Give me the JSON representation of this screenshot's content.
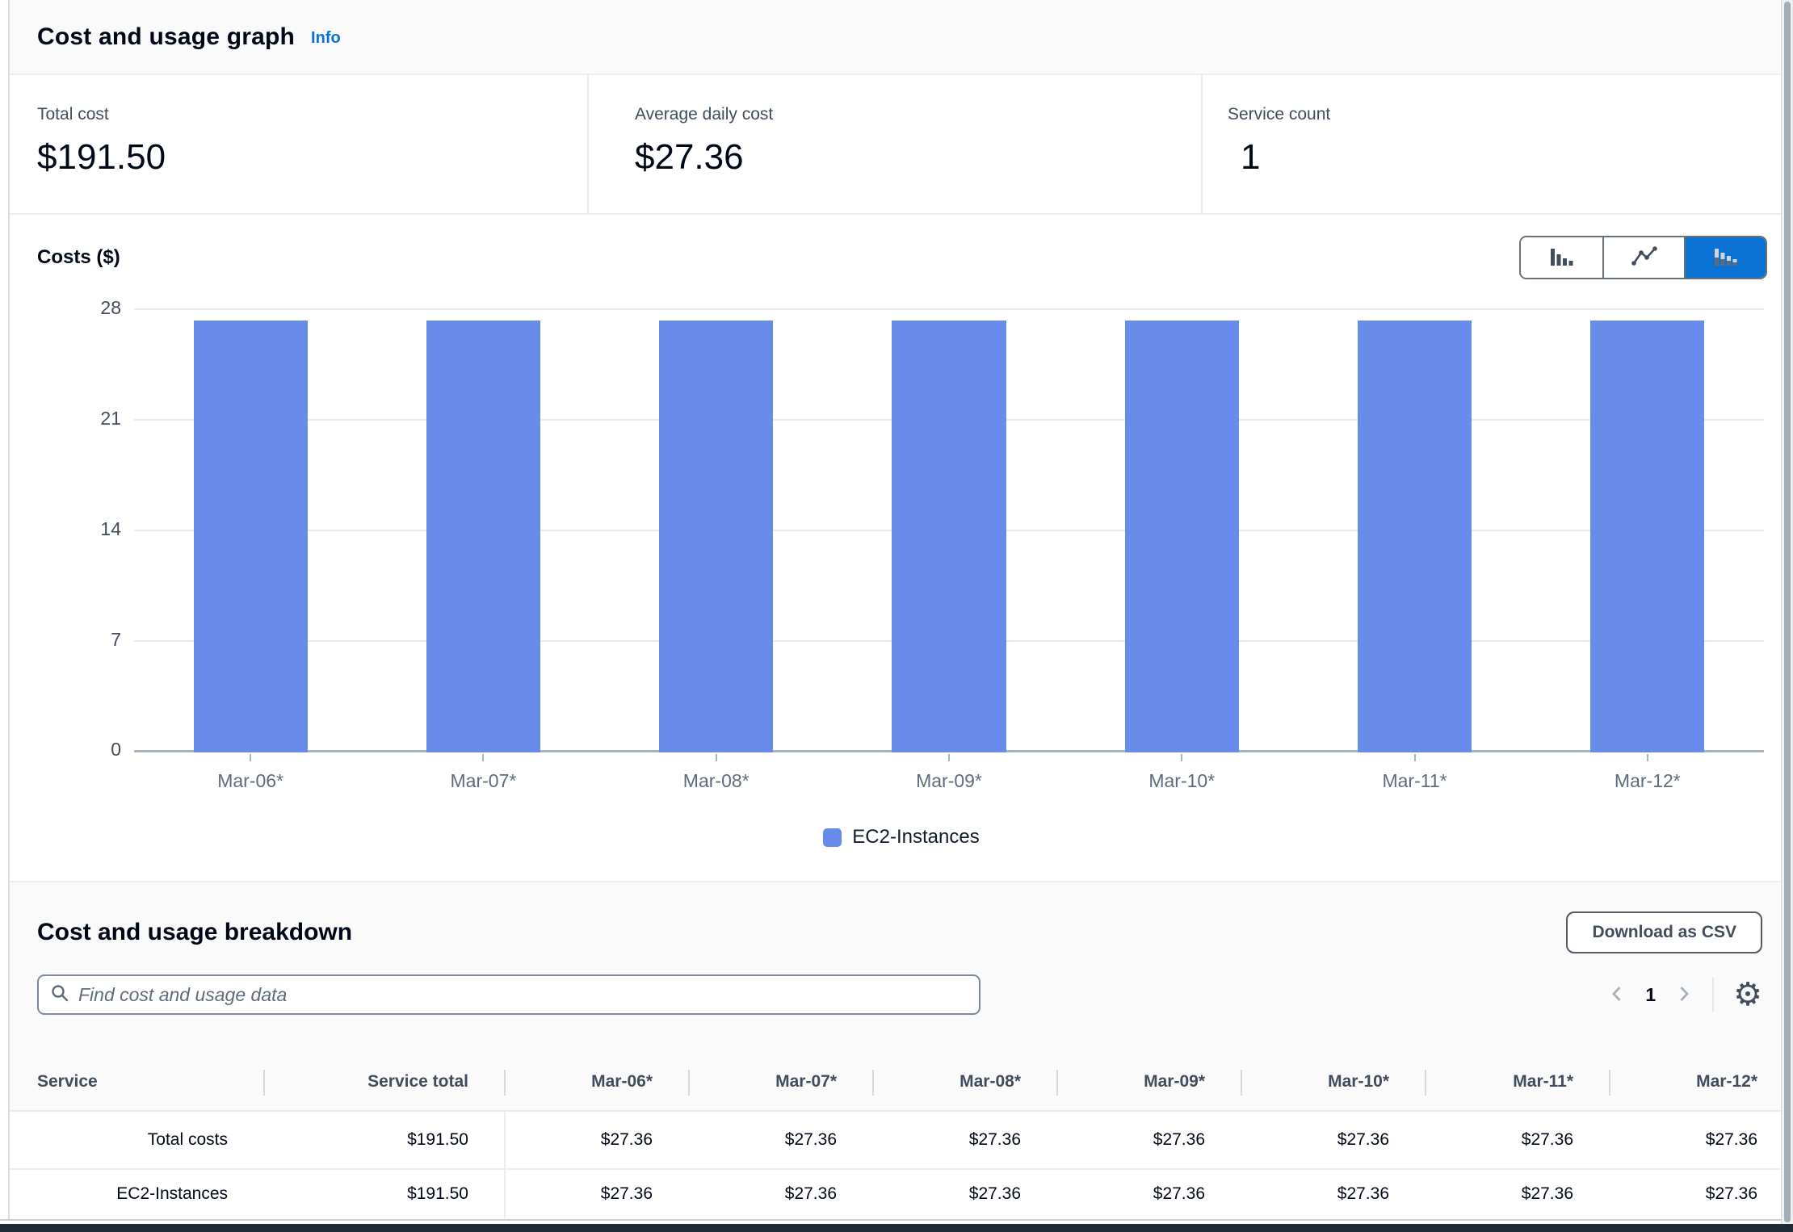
{
  "header": {
    "title": "Cost and usage graph",
    "info_link": "Info"
  },
  "stats": {
    "items": [
      {
        "label": "Total cost",
        "value": "$191.50"
      },
      {
        "label": "Average daily cost",
        "value": "$27.36"
      },
      {
        "label": "Service count",
        "value": "1"
      }
    ]
  },
  "chart_controls": {
    "options": [
      {
        "name": "grouped-bar-chart",
        "selected": false
      },
      {
        "name": "line-chart",
        "selected": false
      },
      {
        "name": "stacked-bar-chart",
        "selected": true
      }
    ]
  },
  "chart_data": {
    "type": "bar",
    "title": "Costs ($)",
    "ylabel": "Costs ($)",
    "categories": [
      "Mar-06*",
      "Mar-07*",
      "Mar-08*",
      "Mar-09*",
      "Mar-10*",
      "Mar-11*",
      "Mar-12*"
    ],
    "series": [
      {
        "name": "EC2-Instances",
        "values": [
          27.36,
          27.36,
          27.36,
          27.36,
          27.36,
          27.36,
          27.36
        ]
      }
    ],
    "ylim": [
      0,
      28
    ],
    "yticks": [
      0,
      7,
      14,
      21,
      28
    ],
    "grid": true,
    "legend_position": "bottom",
    "bar_color": "#688AE8"
  },
  "breakdown": {
    "title": "Cost and usage breakdown",
    "download_button": "Download as CSV",
    "search_placeholder": "Find cost and usage data",
    "pagination": {
      "current_page": "1"
    },
    "table": {
      "columns": [
        "Service",
        "Service total",
        "Mar-06*",
        "Mar-07*",
        "Mar-08*",
        "Mar-09*",
        "Mar-10*",
        "Mar-11*",
        "Mar-12*"
      ],
      "rows": [
        {
          "service": "Total costs",
          "values": [
            "$191.50",
            "$27.36",
            "$27.36",
            "$27.36",
            "$27.36",
            "$27.36",
            "$27.36",
            "$27.36"
          ]
        },
        {
          "service": "EC2-Instances",
          "values": [
            "$191.50",
            "$27.36",
            "$27.36",
            "$27.36",
            "$27.36",
            "$27.36",
            "$27.36",
            "$27.36"
          ]
        }
      ]
    }
  },
  "colors": {
    "accent": "#0972d3",
    "bar": "#688AE8",
    "dark_footer": "#1f2a37"
  }
}
